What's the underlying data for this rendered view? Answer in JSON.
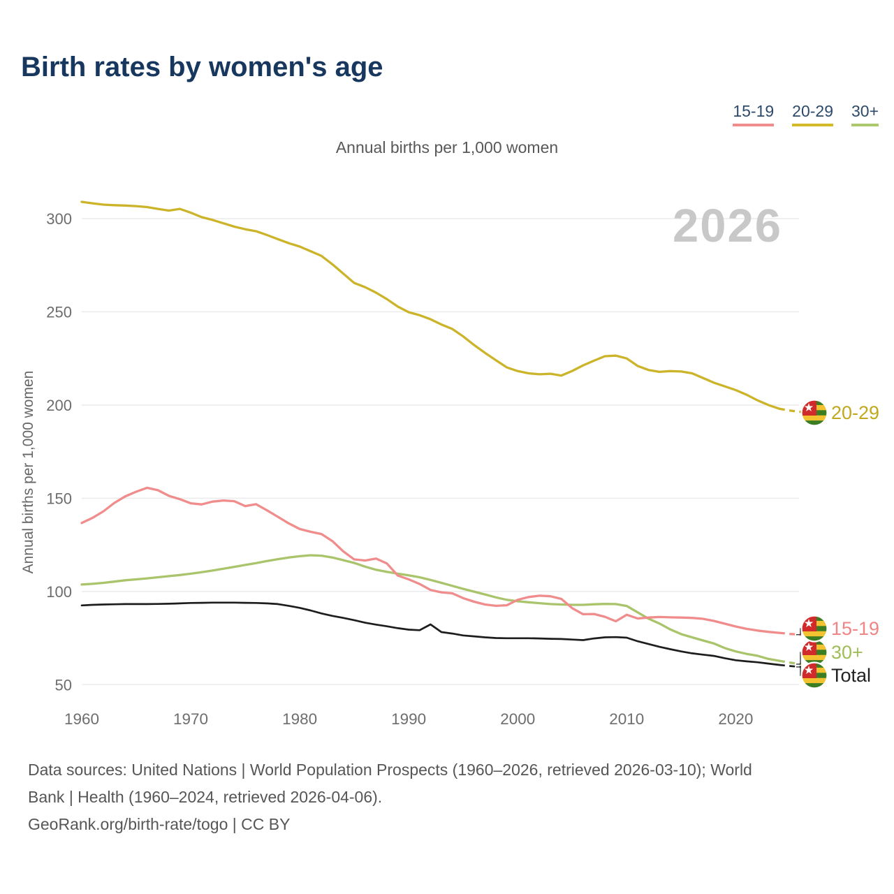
{
  "header": {
    "title": "Birth rates by women's age"
  },
  "legend": {
    "items": [
      {
        "label": "15-19",
        "color": "#f08c8c"
      },
      {
        "label": "20-29",
        "color": "#d3ba28"
      },
      {
        "label": "30+",
        "color": "#abc86d"
      }
    ]
  },
  "footer": {
    "line1": "Data sources: United Nations | World Population Prospects (1960–2026, retrieved 2026-03-10); World",
    "line2": "Bank | Health (1960–2024, retrieved 2026-04-06).",
    "line3": "GeoRank.org/birth-rate/togo | CC BY"
  },
  "chart_data": {
    "type": "line",
    "title": "Birth rates by women's age",
    "subtitle": "Annual births per 1,000 women",
    "ylabel": "Annual births per 1,000 women",
    "watermark": "2026",
    "grid": "horizontal",
    "legend_position": "top-right",
    "xlim": [
      1960,
      2026
    ],
    "ylim": [
      45,
      315
    ],
    "x_ticks": [
      1960,
      1970,
      1980,
      1990,
      2000,
      2010,
      2020
    ],
    "y_ticks": [
      50,
      100,
      150,
      200,
      250,
      300
    ],
    "projection_dash_from_year": 2024,
    "end_marker": "togo-flag-icon",
    "togo_flag_colors": {
      "green": "#3a7d22",
      "yellow": "#f2c230",
      "red": "#d02a2a",
      "star": "#ffffff"
    },
    "years": [
      1960,
      1961,
      1962,
      1963,
      1964,
      1965,
      1966,
      1967,
      1968,
      1969,
      1970,
      1971,
      1972,
      1973,
      1974,
      1975,
      1976,
      1977,
      1978,
      1979,
      1980,
      1981,
      1982,
      1983,
      1984,
      1985,
      1986,
      1987,
      1988,
      1989,
      1990,
      1991,
      1992,
      1993,
      1994,
      1995,
      1996,
      1997,
      1998,
      1999,
      2000,
      2001,
      2002,
      2003,
      2004,
      2005,
      2006,
      2007,
      2008,
      2009,
      2010,
      2011,
      2012,
      2013,
      2014,
      2015,
      2016,
      2017,
      2018,
      2019,
      2020,
      2021,
      2022,
      2023,
      2024,
      2025,
      2026
    ],
    "series": [
      {
        "name": "20-29",
        "color": "#ccb42a",
        "label_color": "#c0a81f",
        "values": [
          309,
          308.2,
          307.5,
          307.2,
          307,
          306.7,
          306.2,
          305.2,
          304.3,
          305.2,
          303.2,
          300.8,
          299.3,
          297.5,
          295.7,
          294.3,
          293.2,
          291.2,
          289,
          286.8,
          285,
          282.5,
          280,
          275.5,
          270.5,
          265.5,
          263.2,
          260.3,
          256.8,
          252.8,
          249.8,
          248.2,
          246,
          243.2,
          240.8,
          236.8,
          232.2,
          228,
          224,
          220.2,
          218.2,
          217,
          216.5,
          216.8,
          215.8,
          218.3,
          221.3,
          223.8,
          226.2,
          226.5,
          225,
          221,
          218.8,
          217.8,
          218.2,
          218,
          217,
          214.5,
          212,
          210,
          208,
          205.5,
          202.5,
          200,
          198,
          197,
          196.3
        ]
      },
      {
        "name": "30+",
        "color": "#a9c46a",
        "label_color": "#9fbd58",
        "values": [
          103.7,
          104.1,
          104.6,
          105.3,
          106,
          106.5,
          107,
          107.6,
          108.2,
          108.8,
          109.5,
          110.3,
          111.2,
          112.2,
          113.2,
          114.2,
          115.2,
          116.3,
          117.3,
          118.2,
          118.9,
          119.4,
          119.2,
          118.2,
          116.8,
          115.3,
          113.3,
          111.6,
          110.5,
          109.5,
          108.6,
          107.6,
          106.2,
          104.6,
          103,
          101.4,
          99.9,
          98.4,
          96.8,
          95.5,
          94.7,
          94.2,
          93.7,
          93.2,
          93,
          92.8,
          92.8,
          93.1,
          93.3,
          93.2,
          92.2,
          88.8,
          85.4,
          82.8,
          79.6,
          77.1,
          75.4,
          73.7,
          72.1,
          69.6,
          67.8,
          66.5,
          65.5,
          63.8,
          62.8,
          61.8,
          61
        ]
      },
      {
        "name": "15-19",
        "color": "#f08c8c",
        "label_color": "#ef8585",
        "values": [
          136.7,
          139.5,
          143,
          147.5,
          151,
          153.5,
          155.6,
          154.3,
          151.3,
          149.5,
          147.3,
          146.7,
          148.2,
          148.8,
          148.4,
          145.8,
          146.8,
          143.5,
          140,
          136.5,
          133.5,
          132,
          130.8,
          127,
          121.5,
          117.2,
          116.6,
          117.6,
          115,
          108.5,
          106.5,
          104,
          100.8,
          99.5,
          99,
          96.4,
          94.5,
          93,
          92.3,
          92.6,
          95.5,
          97,
          97.7,
          97.4,
          96,
          91,
          87.8,
          87.9,
          86.4,
          84,
          87.5,
          85.5,
          86,
          86.3,
          86.1,
          86,
          85.8,
          85.3,
          84.2,
          82.7,
          81.2,
          79.9,
          79,
          78.3,
          77.8,
          77.2,
          76.8
        ]
      },
      {
        "name": "Total",
        "color": "#1d1d1d",
        "label_color": "#222222",
        "values": [
          92.5,
          92.8,
          93,
          93.1,
          93.2,
          93.2,
          93.2,
          93.3,
          93.4,
          93.6,
          93.8,
          93.9,
          94,
          94,
          94,
          93.9,
          93.8,
          93.6,
          93.2,
          92.3,
          91.2,
          89.8,
          88.2,
          86.9,
          85.8,
          84.6,
          83.2,
          82.2,
          81.3,
          80.3,
          79.5,
          79.2,
          82.3,
          78.2,
          77.4,
          76.4,
          75.9,
          75.4,
          75,
          74.9,
          74.9,
          74.9,
          74.8,
          74.6,
          74.5,
          74.2,
          73.9,
          74.8,
          75.4,
          75.5,
          75.2,
          73.3,
          71.8,
          70.3,
          69,
          67.8,
          66.8,
          66.1,
          65.4,
          64.2,
          63.1,
          62.5,
          62,
          61.3,
          60.6,
          60,
          59.5
        ]
      }
    ]
  }
}
